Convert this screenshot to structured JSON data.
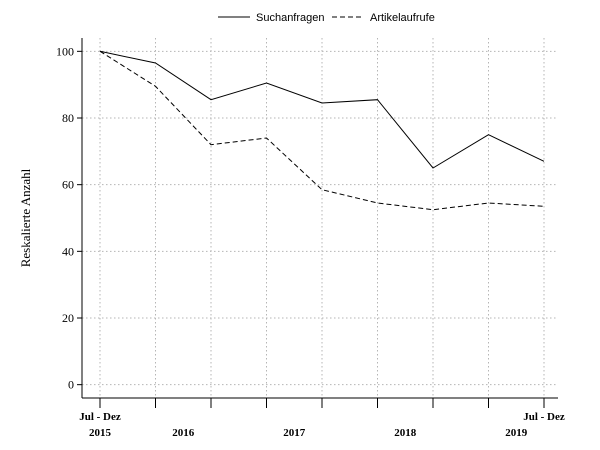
{
  "chart_data": {
    "type": "line",
    "title": "",
    "xlabel": "",
    "ylabel": "Reskalierte Anzahl",
    "x_count": 9,
    "x_ticks": [
      {
        "index": 0,
        "line1": "Jul - Dez",
        "line2": "2015"
      },
      {
        "index": 1.5,
        "line1": "",
        "line2": "2016"
      },
      {
        "index": 3.5,
        "line1": "",
        "line2": "2017"
      },
      {
        "index": 5.5,
        "line1": "",
        "line2": "2018"
      },
      {
        "index": 7.5,
        "line1": "",
        "line2": "2019"
      },
      {
        "index": 8,
        "line1": "Jul - Dez",
        "line2": ""
      }
    ],
    "ylim": [
      -4,
      104
    ],
    "yticks": [
      0,
      20,
      40,
      60,
      80,
      100
    ],
    "grid": true,
    "legend": "top-center",
    "series": [
      {
        "name": "Suchanfragen",
        "style": "solid",
        "values": [
          100,
          96.5,
          85.5,
          90.5,
          84.5,
          85.5,
          65,
          75,
          67
        ]
      },
      {
        "name": "Artikelaufrufe",
        "style": "dashed",
        "values": [
          100,
          89.5,
          72,
          74,
          58.5,
          54.5,
          52.5,
          54.5,
          53.5
        ]
      }
    ]
  }
}
